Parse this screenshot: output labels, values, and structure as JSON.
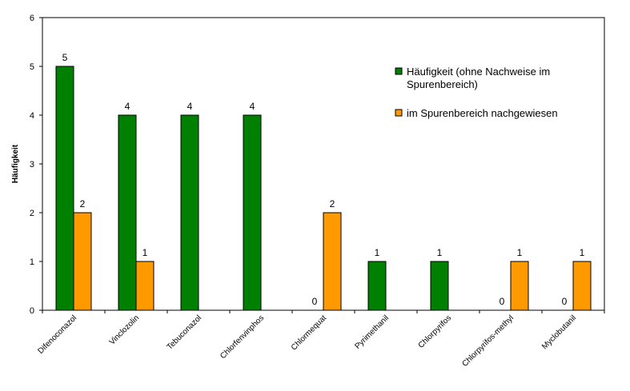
{
  "chart_data": {
    "type": "bar",
    "ylabel": "Häufigkeit",
    "xlabel": "",
    "ylim": [
      0,
      6
    ],
    "yticks": [
      "0",
      "1",
      "2",
      "3",
      "4",
      "5",
      "6"
    ],
    "grid": false,
    "legend_position": "right",
    "categories": [
      "Difenoconazol",
      "Vinclozolin",
      "Tebuconazol",
      "Chlorfenvinphos",
      "Chlormequat",
      "Pyrimethanil",
      "Chlorpyrifos",
      "Chlorpyrifos-methyl",
      "Myclobutanil"
    ],
    "series": [
      {
        "name": "Häufigkeit (ohne Nachweise im Spurenbereich)",
        "name_lines": [
          "Häufigkeit (ohne Nachweise im",
          "Spurenbereich)"
        ],
        "color": "#008000",
        "values": [
          5,
          4,
          4,
          4,
          0,
          1,
          1,
          0,
          0
        ],
        "labels": [
          "5",
          "4",
          "4",
          "4",
          "0",
          "1",
          "1",
          "0",
          "0"
        ]
      },
      {
        "name": "im Spurenbereich nachgewiesen",
        "name_lines": [
          "im Spurenbereich nachgewiesen"
        ],
        "color": "#FF9900",
        "values": [
          2,
          1,
          0,
          0,
          2,
          0,
          0,
          1,
          1
        ],
        "labels": [
          "2",
          "1",
          "",
          "",
          "2",
          "",
          "",
          "1",
          "1"
        ]
      }
    ]
  }
}
